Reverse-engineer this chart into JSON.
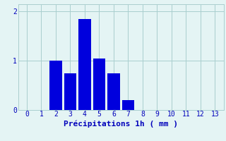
{
  "categories": [
    0,
    1,
    2,
    3,
    4,
    5,
    6,
    7,
    8,
    9,
    10,
    11,
    12,
    13
  ],
  "values": [
    0,
    0,
    1.0,
    0.75,
    1.85,
    1.05,
    0.75,
    0.2,
    0,
    0,
    0,
    0,
    0,
    0
  ],
  "bar_color": "#0000dd",
  "xlabel": "Précipitations 1h ( mm )",
  "ylim": [
    0,
    2.15
  ],
  "yticks": [
    0,
    1,
    2
  ],
  "xlim": [
    -0.6,
    13.6
  ],
  "xticks": [
    0,
    1,
    2,
    3,
    4,
    5,
    6,
    7,
    8,
    9,
    10,
    11,
    12,
    13
  ],
  "background_color": "#e4f4f4",
  "grid_color": "#aacece",
  "tick_color": "#0000bb",
  "xlabel_fontsize": 8,
  "tick_fontsize": 7
}
